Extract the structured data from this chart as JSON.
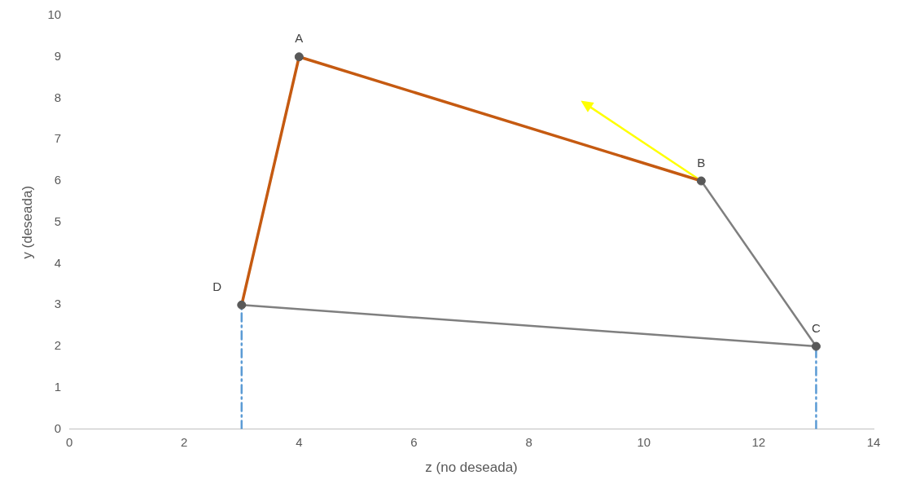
{
  "chart_data": {
    "type": "line",
    "xlabel": "z (no deseada)",
    "ylabel": "y (deseada)",
    "xlim": [
      0,
      14
    ],
    "xticks": [
      0,
      2,
      4,
      6,
      8,
      10,
      12,
      14
    ],
    "ylim": [
      0,
      10
    ],
    "yticks": [
      0,
      1,
      2,
      3,
      4,
      5,
      6,
      7,
      8,
      9,
      10
    ],
    "grid": false,
    "legend": false,
    "marker": "circle",
    "line_style": "solid",
    "series": [
      {
        "color": "#c55a11",
        "marker": "none",
        "x": [
          3,
          4,
          11
        ],
        "values": [
          3,
          9,
          6
        ]
      },
      {
        "color": "#7f7f7f",
        "marker": "none",
        "x": [
          11,
          13,
          3
        ],
        "values": [
          6,
          2,
          3
        ]
      },
      {
        "color": "#5b9bd5",
        "marker": "none",
        "line_style": "dashed",
        "x": [
          3,
          3
        ],
        "values": [
          0,
          3
        ]
      },
      {
        "color": "#5b9bd5",
        "marker": "none",
        "line_style": "dashed",
        "x": [
          13,
          13
        ],
        "values": [
          0,
          2
        ]
      },
      {
        "color": "#ffff00",
        "marker": "triangle",
        "x": [
          11,
          9
        ],
        "values": [
          6,
          7.85
        ]
      },
      {
        "type": "scatter",
        "color": "#595959",
        "x": [
          4,
          11,
          13,
          3
        ],
        "values": [
          9,
          6,
          2,
          3
        ]
      }
    ],
    "annotations": [
      {
        "text": "A",
        "x": 4,
        "y": 9
      },
      {
        "text": "B",
        "x": 11,
        "y": 6
      },
      {
        "text": "C",
        "x": 13,
        "y": 2
      },
      {
        "text": "D",
        "x": 3,
        "y": 3
      }
    ]
  }
}
